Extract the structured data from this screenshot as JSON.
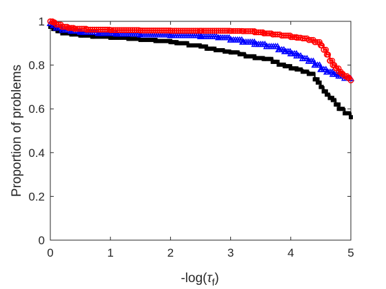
{
  "chart_data": {
    "type": "line",
    "title": "",
    "xlabel": {
      "prefix": "-log(",
      "symbol": "τ",
      "subscript": "f",
      "suffix": ")"
    },
    "ylabel": "Proportion of problems",
    "xlim": [
      0,
      5
    ],
    "ylim": [
      0,
      1
    ],
    "xticks": [
      0,
      1,
      2,
      3,
      4,
      5
    ],
    "yticks": [
      0,
      0.2,
      0.4,
      0.6,
      0.8,
      1
    ],
    "xtick_labels": [
      "0",
      "1",
      "2",
      "3",
      "4",
      "5"
    ],
    "ytick_labels": [
      "0",
      "0.2",
      "0.4",
      "0.6",
      "0.8",
      "1"
    ],
    "grid": false,
    "legend": "none",
    "series": [
      {
        "color": "#000000",
        "marker": "square",
        "x": [
          0.0,
          0.05,
          0.12,
          0.2,
          0.35,
          0.5,
          0.7,
          1.0,
          1.3,
          1.5,
          1.75,
          2.0,
          2.1,
          2.3,
          2.5,
          2.6,
          2.75,
          2.9,
          3.0,
          3.15,
          3.25,
          3.4,
          3.55,
          3.7,
          3.8,
          3.9,
          4.0,
          4.1,
          4.2,
          4.3,
          4.4,
          4.45,
          4.5,
          4.55,
          4.6,
          4.65,
          4.7,
          4.75,
          4.8,
          4.9,
          5.0
        ],
        "y": [
          0.975,
          0.965,
          0.955,
          0.945,
          0.94,
          0.935,
          0.93,
          0.925,
          0.92,
          0.915,
          0.91,
          0.905,
          0.9,
          0.89,
          0.885,
          0.875,
          0.868,
          0.862,
          0.858,
          0.85,
          0.84,
          0.832,
          0.828,
          0.815,
          0.802,
          0.795,
          0.785,
          0.78,
          0.77,
          0.76,
          0.735,
          0.72,
          0.7,
          0.68,
          0.665,
          0.65,
          0.64,
          0.62,
          0.6,
          0.58,
          0.562
        ]
      },
      {
        "color": "#0000ff",
        "marker": "triangle",
        "x": [
          0.0,
          0.05,
          0.1,
          0.2,
          0.35,
          0.5,
          0.8,
          1.1,
          1.5,
          2.0,
          2.5,
          2.8,
          3.0,
          3.2,
          3.4,
          3.6,
          3.8,
          3.9,
          4.0,
          4.1,
          4.2,
          4.3,
          4.4,
          4.5,
          4.6,
          4.7,
          4.8,
          4.9,
          5.0
        ],
        "y": [
          0.99,
          0.98,
          0.97,
          0.96,
          0.955,
          0.95,
          0.945,
          0.942,
          0.938,
          0.935,
          0.93,
          0.925,
          0.915,
          0.905,
          0.895,
          0.885,
          0.87,
          0.862,
          0.852,
          0.842,
          0.83,
          0.818,
          0.8,
          0.78,
          0.768,
          0.758,
          0.75,
          0.74,
          0.738
        ]
      },
      {
        "color": "#ff0000",
        "marker": "circle",
        "x": [
          0.0,
          0.05,
          0.1,
          0.2,
          0.3,
          0.4,
          0.6,
          1.0,
          1.5,
          2.0,
          2.5,
          3.0,
          3.2,
          3.4,
          3.55,
          3.7,
          3.85,
          4.0,
          4.1,
          4.2,
          4.3,
          4.4,
          4.5,
          4.55,
          4.6,
          4.65,
          4.7,
          4.75,
          4.8,
          4.85,
          4.9,
          4.95,
          5.0
        ],
        "y": [
          1.0,
          0.995,
          0.985,
          0.975,
          0.97,
          0.966,
          0.962,
          0.96,
          0.958,
          0.957,
          0.957,
          0.956,
          0.955,
          0.95,
          0.945,
          0.94,
          0.935,
          0.928,
          0.925,
          0.922,
          0.915,
          0.905,
          0.89,
          0.87,
          0.848,
          0.82,
          0.8,
          0.785,
          0.77,
          0.76,
          0.75,
          0.742,
          0.73
        ]
      }
    ]
  }
}
